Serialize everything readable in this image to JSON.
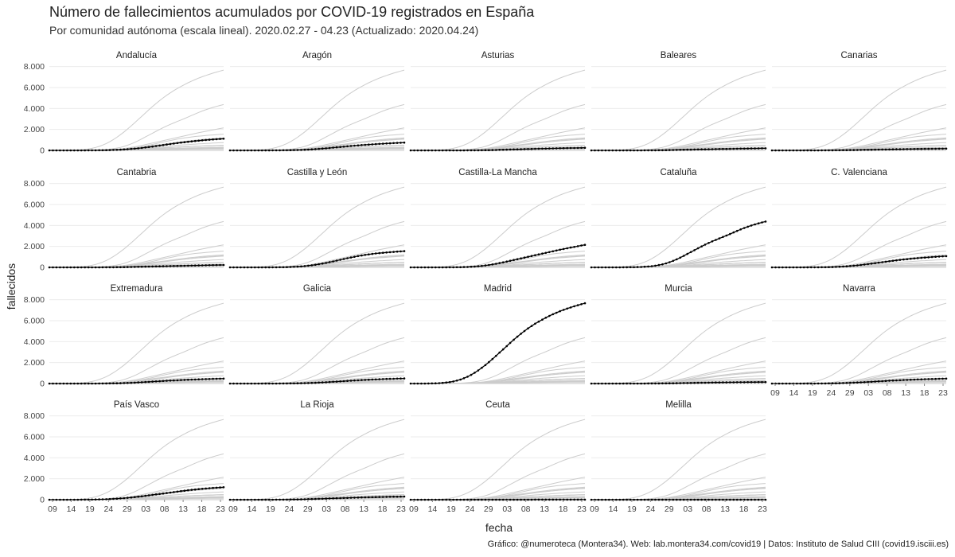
{
  "title": "Número de fallecimientos acumulados por COVID-19 registrados en España",
  "subtitle": "Por comunidad autónoma (escala lineal). 2020.02.27 - 04.23 (Actualizado: 2020.04.24)",
  "caption": "Gráfico: @numeroteca (Montera34). Web: lab.montera34.com/covid19 | Datos: Instituto de Salud CIII (covid19.isciii.es)",
  "chart_data": {
    "type": "line",
    "facet": true,
    "xlabel": "fecha",
    "ylabel": "fallecidos",
    "x_range": [
      "2020-03-07",
      "2020-04-23"
    ],
    "ylim": [
      0,
      8200
    ],
    "y_ticks": [
      0,
      2000,
      4000,
      6000,
      8000
    ],
    "y_tick_labels": [
      "0",
      "2.000",
      "4.000",
      "6.000",
      "8.000"
    ],
    "x_tick_labels": [
      "09",
      "14",
      "19",
      "24",
      "29",
      "03",
      "08",
      "13",
      "18",
      "23"
    ],
    "grid": true,
    "highlight_color": "#000000",
    "background_series_color": "#cccccc",
    "series": [
      {
        "name": "Andalucía",
        "values": [
          0,
          0,
          0,
          0,
          0,
          0,
          1,
          1,
          1,
          2,
          3,
          4,
          6,
          9,
          13,
          18,
          24,
          32,
          42,
          56,
          72,
          90,
          115,
          142,
          170,
          200,
          238,
          278,
          322,
          368,
          415,
          462,
          510,
          560,
          608,
          655,
          700,
          742,
          782,
          820,
          858,
          895,
          930,
          962,
          992,
          1018,
          1045,
          1070,
          1095,
          1118
        ]
      },
      {
        "name": "Aragón",
        "values": [
          0,
          0,
          0,
          0,
          0,
          0,
          0,
          0,
          1,
          1,
          2,
          3,
          4,
          6,
          9,
          12,
          16,
          22,
          29,
          38,
          49,
          63,
          79,
          98,
          120,
          145,
          172,
          200,
          230,
          262,
          295,
          328,
          360,
          392,
          423,
          452,
          480,
          506,
          532,
          555,
          578,
          600,
          620,
          640,
          660,
          678,
          695,
          712,
          728,
          742
        ]
      },
      {
        "name": "Asturias",
        "values": [
          0,
          0,
          0,
          0,
          0,
          0,
          0,
          0,
          0,
          0,
          0,
          0,
          1,
          1,
          2,
          3,
          4,
          6,
          8,
          11,
          15,
          20,
          26,
          33,
          41,
          50,
          60,
          70,
          80,
          90,
          100,
          110,
          120,
          130,
          140,
          150,
          158,
          166,
          174,
          182,
          190,
          198,
          205,
          212,
          218,
          224,
          230,
          236,
          242,
          248
        ]
      },
      {
        "name": "Baleares",
        "values": [
          0,
          0,
          0,
          0,
          0,
          0,
          0,
          0,
          0,
          0,
          0,
          1,
          1,
          2,
          3,
          4,
          6,
          8,
          11,
          14,
          18,
          23,
          29,
          35,
          42,
          50,
          57,
          65,
          72,
          80,
          88,
          95,
          102,
          109,
          116,
          122,
          128,
          134,
          140,
          146,
          152,
          158,
          164,
          170,
          175,
          180,
          185,
          190,
          195,
          200
        ]
      },
      {
        "name": "Canarias",
        "values": [
          0,
          0,
          0,
          0,
          0,
          0,
          0,
          0,
          0,
          0,
          1,
          1,
          2,
          3,
          4,
          6,
          8,
          10,
          13,
          16,
          20,
          24,
          29,
          34,
          39,
          45,
          50,
          56,
          62,
          68,
          74,
          80,
          86,
          92,
          98,
          104,
          109,
          114,
          119,
          124,
          129,
          134,
          138,
          142,
          146,
          150,
          154,
          158,
          162,
          166
        ]
      },
      {
        "name": "Cantabria",
        "values": [
          0,
          0,
          0,
          0,
          0,
          0,
          0,
          0,
          0,
          0,
          0,
          1,
          1,
          2,
          3,
          4,
          6,
          8,
          11,
          14,
          18,
          23,
          29,
          35,
          42,
          50,
          58,
          66,
          74,
          82,
          90,
          98,
          106,
          114,
          122,
          130,
          138,
          146,
          154,
          162,
          170,
          178,
          186,
          193,
          200,
          207,
          213,
          219,
          225,
          230
        ]
      },
      {
        "name": "Castilla y León",
        "values": [
          0,
          0,
          0,
          0,
          0,
          0,
          0,
          0,
          0,
          1,
          2,
          3,
          5,
          8,
          12,
          18,
          26,
          37,
          51,
          70,
          94,
          123,
          158,
          200,
          248,
          302,
          362,
          428,
          498,
          572,
          648,
          725,
          800,
          872,
          942,
          1010,
          1075,
          1135,
          1190,
          1240,
          1285,
          1325,
          1360,
          1390,
          1420,
          1448,
          1475,
          1500,
          1525,
          1548
        ]
      },
      {
        "name": "Castilla-La Mancha",
        "values": [
          0,
          0,
          0,
          0,
          0,
          0,
          0,
          0,
          1,
          2,
          3,
          5,
          8,
          12,
          18,
          27,
          40,
          57,
          79,
          106,
          140,
          180,
          228,
          282,
          342,
          408,
          478,
          552,
          628,
          705,
          782,
          860,
          935,
          1010,
          1085,
          1160,
          1235,
          1310,
          1385,
          1460,
          1535,
          1610,
          1685,
          1755,
          1825,
          1890,
          1955,
          2020,
          2085,
          2150
        ]
      },
      {
        "name": "Cataluña",
        "values": [
          0,
          0,
          0,
          0,
          0,
          0,
          1,
          2,
          3,
          5,
          8,
          12,
          18,
          27,
          40,
          58,
          82,
          115,
          160,
          218,
          290,
          380,
          490,
          620,
          770,
          930,
          1100,
          1280,
          1460,
          1640,
          1820,
          2000,
          2170,
          2330,
          2480,
          2620,
          2760,
          2900,
          3040,
          3180,
          3330,
          3480,
          3620,
          3760,
          3880,
          3990,
          4100,
          4200,
          4290,
          4370
        ]
      },
      {
        "name": "C. Valenciana",
        "values": [
          0,
          0,
          0,
          0,
          0,
          0,
          0,
          1,
          1,
          2,
          3,
          4,
          6,
          9,
          13,
          18,
          25,
          34,
          46,
          61,
          80,
          102,
          128,
          158,
          192,
          230,
          270,
          312,
          356,
          402,
          448,
          494,
          540,
          585,
          628,
          670,
          710,
          748,
          784,
          818,
          850,
          880,
          908,
          934,
          960,
          984,
          1008,
          1030,
          1052,
          1072
        ]
      },
      {
        "name": "Extremadura",
        "values": [
          0,
          0,
          0,
          0,
          0,
          0,
          0,
          0,
          0,
          0,
          1,
          1,
          2,
          3,
          5,
          7,
          10,
          14,
          19,
          26,
          34,
          44,
          56,
          70,
          86,
          104,
          122,
          142,
          162,
          182,
          202,
          222,
          242,
          262,
          280,
          298,
          315,
          332,
          348,
          362,
          376,
          390,
          402,
          414,
          425,
          436,
          446,
          456,
          465,
          474
        ]
      },
      {
        "name": "Galicia",
        "values": [
          0,
          0,
          0,
          0,
          0,
          0,
          0,
          0,
          0,
          0,
          1,
          1,
          2,
          3,
          4,
          6,
          9,
          12,
          16,
          21,
          28,
          36,
          46,
          58,
          72,
          88,
          105,
          124,
          144,
          165,
          186,
          208,
          230,
          252,
          274,
          295,
          315,
          334,
          352,
          368,
          384,
          398,
          412,
          425,
          437,
          448,
          458,
          468,
          477,
          485
        ]
      },
      {
        "name": "Madrid",
        "values": [
          0,
          0,
          0,
          1,
          3,
          6,
          12,
          22,
          38,
          62,
          95,
          140,
          200,
          280,
          380,
          505,
          655,
          830,
          1030,
          1255,
          1500,
          1765,
          2045,
          2340,
          2640,
          2950,
          3260,
          3570,
          3880,
          4180,
          4470,
          4750,
          5010,
          5260,
          5490,
          5710,
          5910,
          6100,
          6280,
          6450,
          6610,
          6760,
          6900,
          7030,
          7150,
          7260,
          7370,
          7470,
          7570,
          7660
        ]
      },
      {
        "name": "Murcia",
        "values": [
          0,
          0,
          0,
          0,
          0,
          0,
          0,
          0,
          0,
          0,
          0,
          0,
          1,
          1,
          2,
          3,
          4,
          6,
          8,
          10,
          13,
          17,
          21,
          26,
          31,
          37,
          43,
          49,
          55,
          61,
          67,
          73,
          79,
          85,
          90,
          95,
          100,
          104,
          108,
          112,
          116,
          119,
          122,
          125,
          128,
          130,
          132,
          134,
          136,
          138
        ]
      },
      {
        "name": "Navarra",
        "values": [
          0,
          0,
          0,
          0,
          0,
          0,
          0,
          0,
          0,
          0,
          1,
          2,
          3,
          5,
          7,
          10,
          14,
          19,
          25,
          33,
          42,
          53,
          66,
          80,
          96,
          114,
          132,
          150,
          170,
          190,
          210,
          230,
          250,
          270,
          288,
          306,
          322,
          338,
          352,
          366,
          380,
          392,
          404,
          415,
          425,
          435,
          444,
          452,
          460,
          468
        ]
      },
      {
        "name": "País Vasco",
        "values": [
          0,
          0,
          0,
          0,
          0,
          0,
          1,
          2,
          3,
          5,
          7,
          10,
          14,
          20,
          27,
          36,
          48,
          63,
          81,
          102,
          126,
          153,
          183,
          216,
          252,
          290,
          330,
          372,
          416,
          460,
          505,
          550,
          595,
          640,
          685,
          730,
          775,
          818,
          860,
          900,
          938,
          975,
          1010,
          1042,
          1072,
          1100,
          1126,
          1150,
          1172,
          1190
        ]
      },
      {
        "name": "La Rioja",
        "values": [
          0,
          0,
          0,
          0,
          0,
          0,
          0,
          0,
          0,
          1,
          1,
          2,
          3,
          4,
          6,
          8,
          11,
          15,
          20,
          26,
          33,
          41,
          50,
          60,
          71,
          82,
          94,
          106,
          118,
          130,
          142,
          154,
          166,
          177,
          188,
          198,
          208,
          218,
          227,
          236,
          244,
          252,
          260,
          267,
          274,
          280,
          286,
          292,
          297,
          302
        ]
      },
      {
        "name": "Ceuta",
        "values": [
          0,
          0,
          0,
          0,
          0,
          0,
          0,
          0,
          0,
          0,
          0,
          0,
          0,
          0,
          0,
          0,
          0,
          0,
          0,
          0,
          1,
          1,
          1,
          1,
          2,
          2,
          2,
          2,
          2,
          3,
          3,
          3,
          3,
          3,
          3,
          4,
          4,
          4,
          4,
          4,
          4,
          4,
          4,
          4,
          4,
          4,
          4,
          4,
          4,
          4
        ]
      },
      {
        "name": "Melilla",
        "values": [
          0,
          0,
          0,
          0,
          0,
          0,
          0,
          0,
          0,
          0,
          0,
          0,
          0,
          0,
          0,
          0,
          0,
          0,
          0,
          1,
          1,
          1,
          1,
          1,
          1,
          1,
          1,
          1,
          2,
          2,
          2,
          2,
          2,
          2,
          2,
          2,
          2,
          2,
          2,
          2,
          2,
          2,
          2,
          2,
          2,
          2,
          2,
          2,
          2,
          2
        ]
      }
    ]
  }
}
